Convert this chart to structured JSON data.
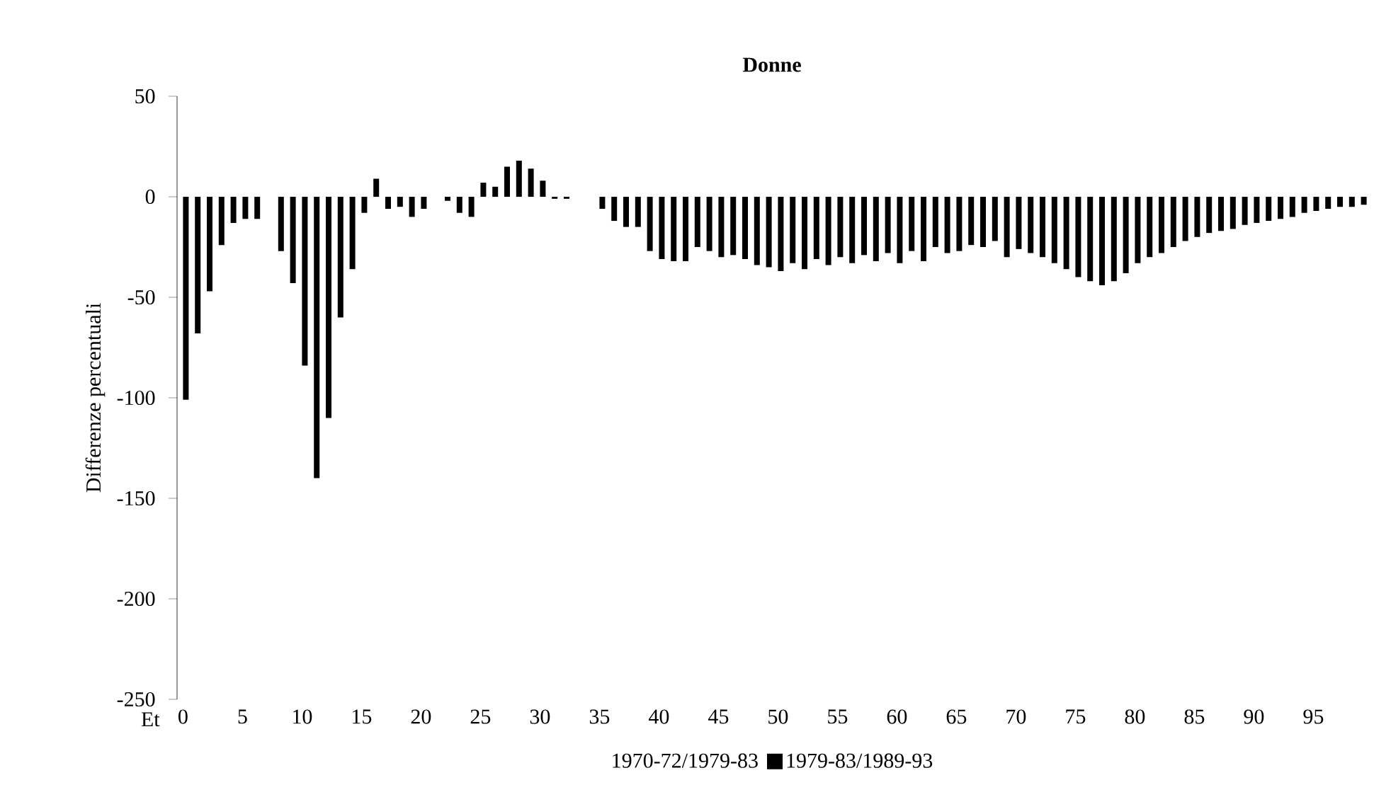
{
  "chart_data": {
    "type": "bar",
    "title": "Donne",
    "xlabel": "Et",
    "ylabel": "Differenze percentuali",
    "categories": [
      "0",
      null,
      null,
      null,
      null,
      "5",
      null,
      null,
      null,
      null,
      "10",
      null,
      null,
      null,
      null,
      "15",
      null,
      null,
      null,
      null,
      "20",
      null,
      null,
      null,
      null,
      "25",
      null,
      null,
      null,
      null,
      "30",
      null,
      null,
      null,
      null,
      "35",
      null,
      null,
      null,
      null,
      "40",
      null,
      null,
      null,
      null,
      "45",
      null,
      null,
      null,
      null,
      "50",
      null,
      null,
      null,
      null,
      "55",
      null,
      null,
      null,
      null,
      "60",
      null,
      null,
      null,
      null,
      "65",
      null,
      null,
      null,
      null,
      "70",
      null,
      null,
      null,
      null,
      "75",
      null,
      null,
      null,
      null,
      "80",
      null,
      null,
      null,
      null,
      "85",
      null,
      null,
      null,
      null,
      "90",
      null,
      null,
      null,
      null,
      "95",
      null,
      null,
      null,
      null
    ],
    "series": [
      {
        "name": "1970-72/1979-83",
        "values": [
          null,
          null,
          null,
          null,
          null,
          null,
          null,
          null,
          null,
          null,
          null,
          null,
          null,
          null,
          null,
          null,
          null,
          null,
          null,
          null,
          null,
          null,
          null,
          null,
          null,
          null,
          null,
          null,
          null,
          null,
          null,
          null,
          null,
          null,
          null,
          null,
          null,
          null,
          null,
          null,
          null,
          null,
          null,
          null,
          null,
          null,
          null,
          null,
          null,
          null,
          null,
          null,
          null,
          null,
          null,
          null,
          null,
          null,
          null,
          null,
          null,
          null,
          null,
          null,
          null,
          null,
          null,
          null,
          null,
          null,
          null,
          null,
          null,
          null,
          null,
          null,
          null,
          null,
          null,
          null,
          null,
          null,
          null,
          null,
          null,
          null,
          null,
          null,
          null,
          null,
          null,
          null,
          null,
          null,
          null,
          null,
          null,
          null,
          null,
          null
        ]
      },
      {
        "name": "1979-83/1989-93",
        "color": "#000000",
        "values": [
          -101,
          -68,
          -47,
          -24,
          -13,
          -11,
          -11,
          0,
          -27,
          -43,
          -84,
          -140,
          -110,
          -60,
          -36,
          -8,
          9,
          -6,
          -5,
          -10,
          -6,
          0,
          -2,
          -8,
          -10,
          7,
          5,
          15,
          18,
          14,
          8,
          -1,
          -1,
          0,
          0,
          -6,
          -12,
          -15,
          -15,
          -27,
          -31,
          -32,
          -32,
          -25,
          -27,
          -30,
          -29,
          -31,
          -34,
          -35,
          -37,
          -33,
          -36,
          -31,
          -34,
          -30,
          -33,
          -29,
          -32,
          -28,
          -33,
          -27,
          -32,
          -25,
          -28,
          -27,
          -24,
          -25,
          -22,
          -30,
          -26,
          -28,
          -30,
          -33,
          -36,
          -40,
          -42,
          -44,
          -42,
          -38,
          -33,
          -30,
          -28,
          -25,
          -22,
          -20,
          -18,
          -17,
          -16,
          -14,
          -13,
          -12,
          -11,
          -10,
          -8,
          -7,
          -6,
          -5,
          -5,
          -4
        ]
      }
    ],
    "ylim": [
      -250,
      50
    ],
    "yticks": [
      -250,
      -200,
      -150,
      -100,
      -50,
      0,
      50
    ],
    "legend": "bottom"
  }
}
